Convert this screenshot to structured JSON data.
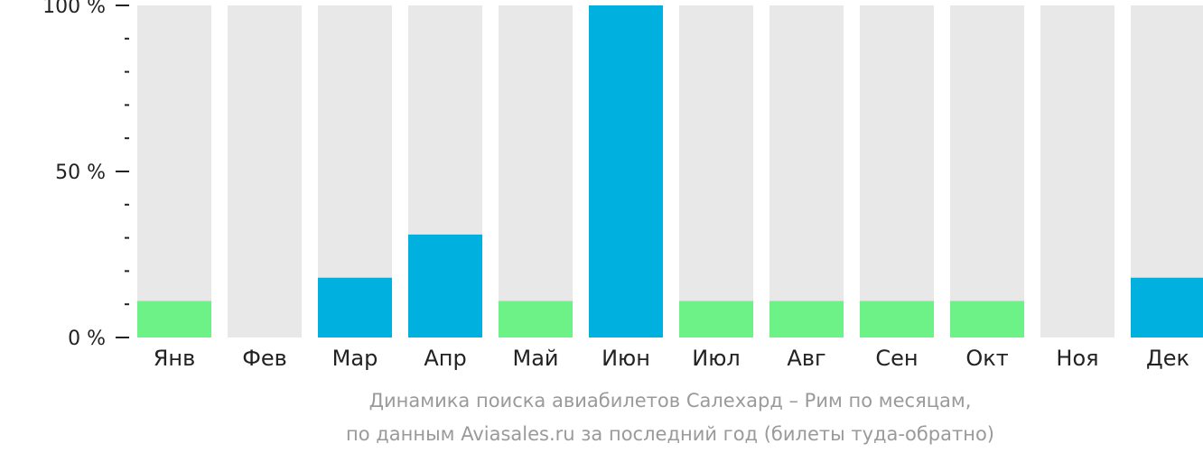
{
  "chart_data": {
    "type": "bar",
    "categories": [
      "Янв",
      "Фев",
      "Мар",
      "Апр",
      "Май",
      "Июн",
      "Июл",
      "Авг",
      "Сен",
      "Окт",
      "Ноя",
      "Дек"
    ],
    "values": [
      11,
      0,
      18,
      31,
      11,
      100,
      11,
      11,
      11,
      11,
      0,
      18
    ],
    "bar_colors": [
      "#6cf287",
      "#6cf287",
      "#00b0de",
      "#00b0de",
      "#6cf287",
      "#00b0de",
      "#6cf287",
      "#6cf287",
      "#6cf287",
      "#6cf287",
      "#6cf287",
      "#00b0de"
    ],
    "background_bar_color": "#e8e8e8",
    "ylim": [
      0,
      100
    ],
    "yticks": [
      {
        "value": 100,
        "label": "100 %"
      },
      {
        "value": 50,
        "label": "50 %"
      },
      {
        "value": 0,
        "label": "0 %"
      }
    ],
    "minor_ytick_step": 10,
    "caption_line1": "Динамика поиска авиабилетов Салехард – Рим по месяцам,",
    "caption_line2": "по данным Aviasales.ru за последний год (билеты туда-обратно)",
    "grid": false,
    "legend": "none"
  }
}
